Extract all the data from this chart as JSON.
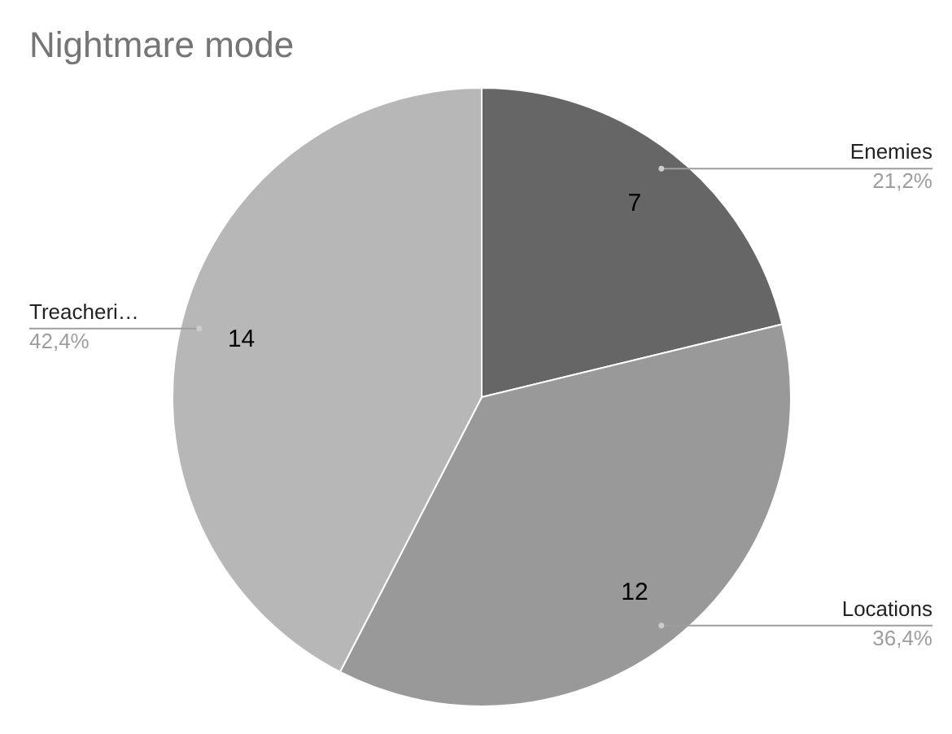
{
  "chart_data": {
    "type": "pie",
    "title": "Nightmare mode",
    "categories": [
      "Enemies",
      "Locations",
      "Treacheri…"
    ],
    "values": [
      7,
      12,
      14
    ],
    "colors": [
      "#666666",
      "#999999",
      "#b7b7b7"
    ],
    "data_labels": true,
    "annotations": [
      "21,2%",
      "36,4%",
      "42,4%"
    ]
  }
}
